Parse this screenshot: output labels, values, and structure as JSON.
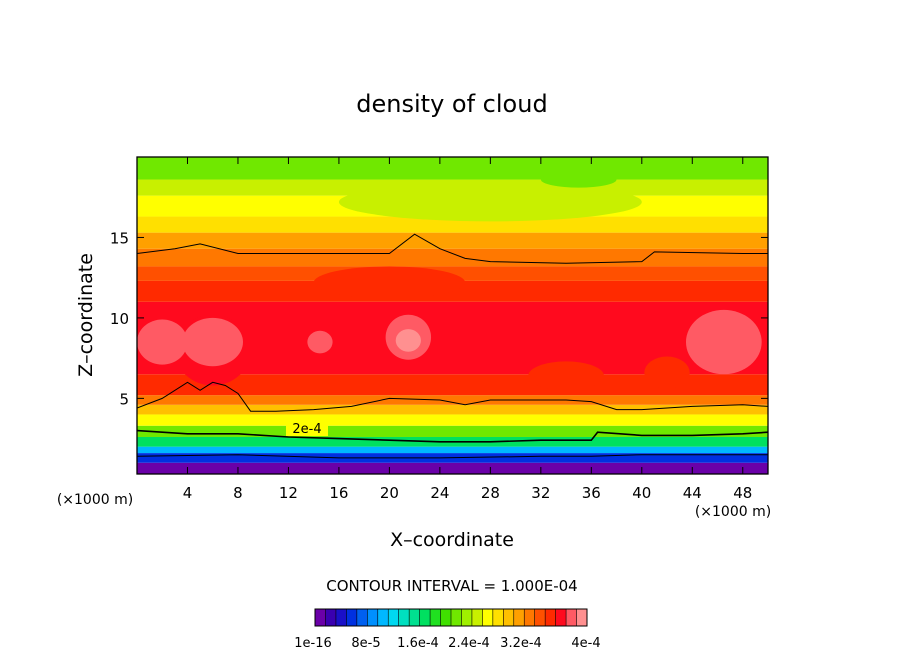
{
  "chart_data": {
    "type": "heatmap",
    "title": "density of cloud",
    "xlabel": "X–coordinate",
    "ylabel": "Z–coordinate",
    "x_unit_left": "(×1000 m)",
    "x_unit_right": "(×1000 m)",
    "xlim": [
      0,
      50
    ],
    "ylim": [
      0.3,
      20
    ],
    "x_ticks": [
      4,
      8,
      12,
      16,
      20,
      24,
      28,
      32,
      36,
      40,
      44,
      48
    ],
    "y_ticks": [
      5,
      10,
      15
    ],
    "x_tick_labels": [
      "4",
      "8",
      "12",
      "16",
      "20",
      "24",
      "28",
      "32",
      "36",
      "40",
      "44",
      "48"
    ],
    "y_tick_labels": [
      "5",
      "10",
      "15"
    ],
    "contour_interval_text": "CONTOUR INTERVAL = 1.000E-04",
    "contour_label": "2e-4",
    "colorbar_tick_labels": [
      "1e-16",
      "8e-5",
      "1.6e-4",
      "2.4e-4",
      "3.2e-4",
      "4e-4"
    ],
    "colorbar_colors": [
      "#6a00a8",
      "#3a00b0",
      "#1a10c8",
      "#0030e0",
      "#0060f0",
      "#0090ff",
      "#00b8ff",
      "#00d8f0",
      "#00e0c0",
      "#00e090",
      "#00e060",
      "#20e020",
      "#40e000",
      "#70e800",
      "#a0f000",
      "#c8f000",
      "#ffff00",
      "#ffe000",
      "#ffc000",
      "#ffa000",
      "#ff7800",
      "#ff5000",
      "#ff2a00",
      "#ff0a1e",
      "#ff5a64",
      "#ff9090"
    ],
    "field_bands": [
      {
        "z_top": 1.0,
        "color": "#6a00a8"
      },
      {
        "z_top": 1.6,
        "color": "#0030e0"
      },
      {
        "z_top": 2.0,
        "color": "#00b8ff"
      },
      {
        "z_top": 2.6,
        "color": "#00e060"
      },
      {
        "z_top": 3.3,
        "color": "#70e800"
      },
      {
        "z_top": 4.0,
        "color": "#ffff00"
      },
      {
        "z_top": 4.6,
        "color": "#ffc000"
      },
      {
        "z_top": 5.2,
        "color": "#ff7800"
      },
      {
        "z_top": 6.5,
        "color": "#ff2a00"
      },
      {
        "z_top": 11.0,
        "color": "#ff0a1e"
      },
      {
        "z_top": 12.3,
        "color": "#ff2a00"
      },
      {
        "z_top": 13.2,
        "color": "#ff5000"
      },
      {
        "z_top": 14.3,
        "color": "#ff7800"
      },
      {
        "z_top": 15.3,
        "color": "#ffa000"
      },
      {
        "z_top": 16.3,
        "color": "#ffe000"
      },
      {
        "z_top": 17.6,
        "color": "#ffff00"
      },
      {
        "z_top": 18.6,
        "color": "#c8f000"
      },
      {
        "z_top": 20.0,
        "color": "#70e800"
      }
    ],
    "contour_lines": [
      {
        "name": "upper",
        "points": [
          [
            0,
            14.0
          ],
          [
            3,
            14.3
          ],
          [
            5,
            14.6
          ],
          [
            8,
            14.0
          ],
          [
            14,
            14.0
          ],
          [
            20,
            14.0
          ],
          [
            22,
            15.2
          ],
          [
            24,
            14.3
          ],
          [
            26,
            13.7
          ],
          [
            28,
            13.5
          ],
          [
            34,
            13.4
          ],
          [
            40,
            13.5
          ],
          [
            41,
            14.1
          ],
          [
            48,
            14.0
          ],
          [
            50,
            14.0
          ]
        ]
      },
      {
        "name": "lower",
        "points": [
          [
            0,
            4.4
          ],
          [
            2,
            5.0
          ],
          [
            4,
            6.0
          ],
          [
            5,
            5.5
          ],
          [
            6,
            6.0
          ],
          [
            7,
            5.8
          ],
          [
            8,
            5.3
          ],
          [
            9,
            4.2
          ],
          [
            11,
            4.2
          ],
          [
            14,
            4.3
          ],
          [
            17,
            4.5
          ],
          [
            20,
            5.0
          ],
          [
            24,
            4.9
          ],
          [
            26,
            4.6
          ],
          [
            28,
            4.9
          ],
          [
            34,
            4.9
          ],
          [
            36,
            4.8
          ],
          [
            38,
            4.3
          ],
          [
            40,
            4.3
          ],
          [
            44,
            4.5
          ],
          [
            48,
            4.6
          ],
          [
            50,
            4.5
          ]
        ]
      },
      {
        "name": "2e-4",
        "points": [
          [
            0,
            3.0
          ],
          [
            4,
            2.8
          ],
          [
            8,
            2.8
          ],
          [
            12,
            2.6
          ],
          [
            16,
            2.5
          ],
          [
            20,
            2.4
          ],
          [
            24,
            2.3
          ],
          [
            28,
            2.3
          ],
          [
            32,
            2.4
          ],
          [
            36,
            2.4
          ],
          [
            36.5,
            2.9
          ],
          [
            40,
            2.7
          ],
          [
            44,
            2.7
          ],
          [
            48,
            2.8
          ],
          [
            50,
            2.9
          ]
        ]
      },
      {
        "name": "base",
        "points": [
          [
            0,
            1.4
          ],
          [
            8,
            1.5
          ],
          [
            16,
            1.3
          ],
          [
            24,
            1.3
          ],
          [
            32,
            1.4
          ],
          [
            36,
            1.4
          ],
          [
            40,
            1.5
          ],
          [
            50,
            1.5
          ]
        ]
      }
    ],
    "patches": [
      {
        "x": 6,
        "z": 8.0,
        "rx": 3.0,
        "rz": 2.2,
        "color": "#ff0a1e"
      },
      {
        "x": 6,
        "z": 8.5,
        "rx": 2.4,
        "rz": 1.5,
        "color": "#ff5a64"
      },
      {
        "x": 2,
        "z": 8.5,
        "rx": 2.0,
        "rz": 1.4,
        "color": "#ff5a64"
      },
      {
        "x": 14.5,
        "z": 8.5,
        "rx": 1.0,
        "rz": 0.7,
        "color": "#ff5a64"
      },
      {
        "x": 21.5,
        "z": 8.8,
        "rx": 1.8,
        "rz": 1.4,
        "color": "#ff5a64"
      },
      {
        "x": 21.5,
        "z": 8.6,
        "rx": 1.0,
        "rz": 0.7,
        "color": "#ff9090"
      },
      {
        "x": 46.5,
        "z": 8.5,
        "rx": 3.0,
        "rz": 2.0,
        "color": "#ff5a64"
      },
      {
        "x": 42,
        "z": 6.6,
        "rx": 1.8,
        "rz": 1.0,
        "color": "#ff2a00"
      },
      {
        "x": 34,
        "z": 6.4,
        "rx": 3.0,
        "rz": 0.9,
        "color": "#ff2a00"
      },
      {
        "x": 28,
        "z": 17.2,
        "rx": 12.0,
        "rz": 1.2,
        "color": "#c8f000"
      },
      {
        "x": 35,
        "z": 18.6,
        "rx": 3.0,
        "rz": 0.5,
        "color": "#70e800"
      },
      {
        "x": 20,
        "z": 12.2,
        "rx": 6.0,
        "rz": 1.0,
        "color": "#ff2a00"
      }
    ]
  }
}
